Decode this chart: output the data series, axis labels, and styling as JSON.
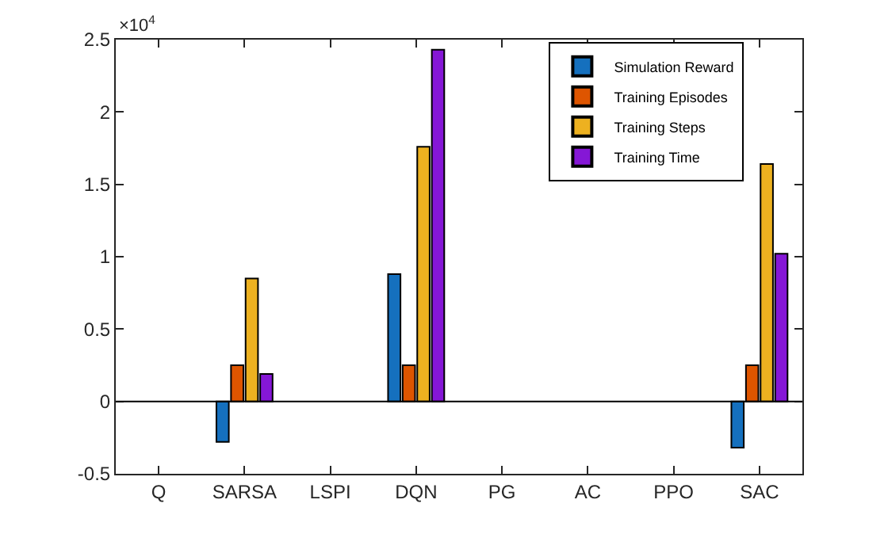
{
  "chart_data": {
    "type": "bar",
    "categories": [
      "Q",
      "SARSA",
      "LSPI",
      "DQN",
      "PG",
      "AC",
      "PPO",
      "SAC"
    ],
    "series": [
      {
        "name": "Simulation Reward",
        "color": "#1570be",
        "values": [
          0,
          -0.28,
          0,
          0.88,
          0,
          0,
          0,
          -0.32
        ]
      },
      {
        "name": "Training Episodes",
        "color": "#de5500",
        "values": [
          0,
          0.25,
          0,
          0.25,
          0,
          0,
          0,
          0.25
        ]
      },
      {
        "name": "Training Steps",
        "color": "#edb120",
        "values": [
          0,
          0.85,
          0,
          1.76,
          0,
          0,
          0,
          1.64
        ]
      },
      {
        "name": "Training Time",
        "color": "#8517d6",
        "values": [
          0,
          0.19,
          0,
          2.43,
          0,
          0,
          0,
          1.02
        ]
      }
    ],
    "ylim": [
      -0.5,
      2.5
    ],
    "yticks": [
      -0.5,
      0,
      0.5,
      1,
      1.5,
      2,
      2.5
    ],
    "annotations": [
      "×10$^{4}$"
    ],
    "ref_lines": [
      {
        "axis": "y",
        "value": 0,
        "color": "#000000"
      }
    ],
    "legend": "top right"
  }
}
